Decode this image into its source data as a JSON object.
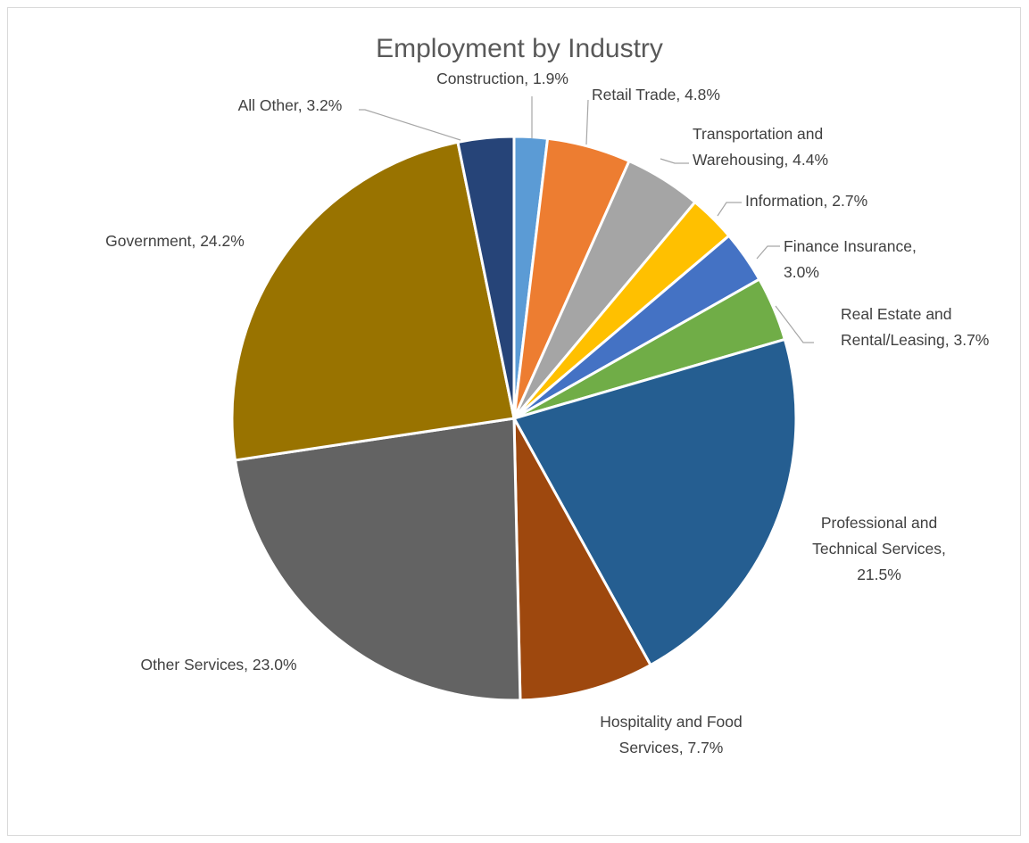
{
  "chart_data": {
    "type": "pie",
    "title": "Employment by Industry",
    "legend": "none",
    "start_angle_deg": 0,
    "direction": "clockwise",
    "slices": [
      {
        "category": "Construction",
        "value": 1.9,
        "color": "#5b9bd5",
        "label_lines": [
          "Construction, 1.9%"
        ]
      },
      {
        "category": "Retail Trade",
        "value": 4.8,
        "color": "#ed7d31",
        "label_lines": [
          "Retail Trade, 4.8%"
        ]
      },
      {
        "category": "Transportation and Warehousing",
        "value": 4.4,
        "color": "#a5a5a5",
        "label_lines": [
          "Transportation and",
          "Warehousing, 4.4%"
        ]
      },
      {
        "category": "Information",
        "value": 2.7,
        "color": "#ffc000",
        "label_lines": [
          "Information, 2.7%"
        ]
      },
      {
        "category": "Finance Insurance",
        "value": 3.0,
        "color": "#4472c4",
        "label_lines": [
          "Finance Insurance,",
          "3.0%"
        ]
      },
      {
        "category": "Real Estate and Rental/Leasing",
        "value": 3.7,
        "color": "#70ad47",
        "label_lines": [
          "Real Estate and",
          "Rental/Leasing, 3.7%"
        ]
      },
      {
        "category": "Professional and Technical Services",
        "value": 21.5,
        "color": "#255e91",
        "label_lines": [
          "Professional and",
          "Technical Services,",
          "21.5%"
        ]
      },
      {
        "category": "Hospitality and Food Services",
        "value": 7.7,
        "color": "#9e480e",
        "label_lines": [
          "Hospitality and Food",
          "Services, 7.7%"
        ]
      },
      {
        "category": "Other Services",
        "value": 23.0,
        "color": "#636363",
        "label_lines": [
          "Other Services, 23.0%"
        ]
      },
      {
        "category": "Government",
        "value": 24.2,
        "color": "#997300",
        "label_lines": [
          "Government, 24.2%"
        ]
      },
      {
        "category": "All Other",
        "value": 3.2,
        "color": "#264478",
        "label_lines": [
          "All Other, 3.2%"
        ]
      }
    ]
  }
}
